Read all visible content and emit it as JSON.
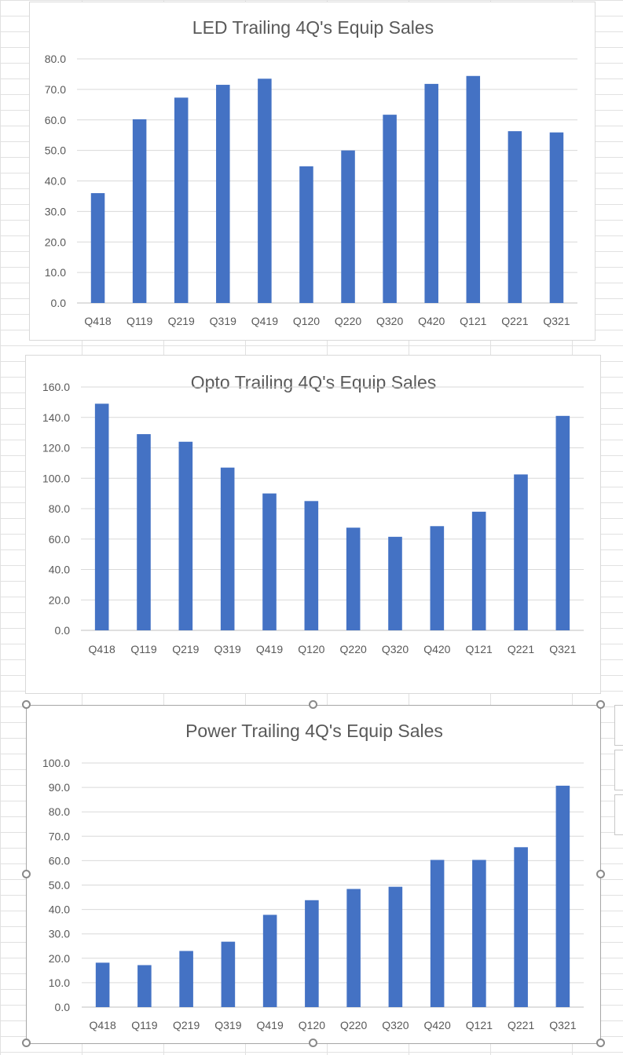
{
  "colors": {
    "bar": "#4472c4",
    "grid": "#d9d9d9",
    "text": "#595959"
  },
  "chart_data": [
    {
      "type": "bar",
      "title": "LED Trailing 4Q's Equip Sales",
      "categories": [
        "Q418",
        "Q119",
        "Q219",
        "Q319",
        "Q419",
        "Q120",
        "Q220",
        "Q320",
        "Q420",
        "Q121",
        "Q221",
        "Q321"
      ],
      "values": [
        36.0,
        60.2,
        67.3,
        71.5,
        73.5,
        44.8,
        50.0,
        61.7,
        71.8,
        74.4,
        56.3,
        55.9
      ],
      "ylim": [
        0,
        80
      ],
      "yticks": [
        "0.0",
        "10.0",
        "20.0",
        "30.0",
        "40.0",
        "50.0",
        "60.0",
        "70.0",
        "80.0"
      ],
      "xlabel": "",
      "ylabel": "",
      "grid": true,
      "legend": "none"
    },
    {
      "type": "bar",
      "title": "Opto Trailing 4Q's Equip Sales",
      "categories": [
        "Q418",
        "Q119",
        "Q219",
        "Q319",
        "Q419",
        "Q120",
        "Q220",
        "Q320",
        "Q420",
        "Q121",
        "Q221",
        "Q321"
      ],
      "values": [
        149.0,
        129.0,
        124.0,
        107.0,
        90.0,
        85.0,
        67.5,
        61.5,
        68.5,
        78.0,
        102.5,
        141.0
      ],
      "ylim": [
        0,
        160
      ],
      "yticks": [
        "0.0",
        "20.0",
        "40.0",
        "60.0",
        "80.0",
        "100.0",
        "120.0",
        "140.0",
        "160.0"
      ],
      "xlabel": "",
      "ylabel": "",
      "grid": true,
      "legend": "none"
    },
    {
      "type": "bar",
      "title": "Power Trailing 4Q's Equip Sales",
      "categories": [
        "Q418",
        "Q119",
        "Q219",
        "Q319",
        "Q419",
        "Q120",
        "Q220",
        "Q320",
        "Q420",
        "Q121",
        "Q221",
        "Q321"
      ],
      "values": [
        18.2,
        17.2,
        23.0,
        26.8,
        37.8,
        43.8,
        48.4,
        49.3,
        60.3,
        60.3,
        65.5,
        90.7
      ],
      "ylim": [
        0,
        100
      ],
      "yticks": [
        "0.0",
        "10.0",
        "20.0",
        "30.0",
        "40.0",
        "50.0",
        "60.0",
        "70.0",
        "80.0",
        "90.0",
        "100.0"
      ],
      "xlabel": "",
      "ylabel": "",
      "grid": true,
      "legend": "none"
    }
  ]
}
